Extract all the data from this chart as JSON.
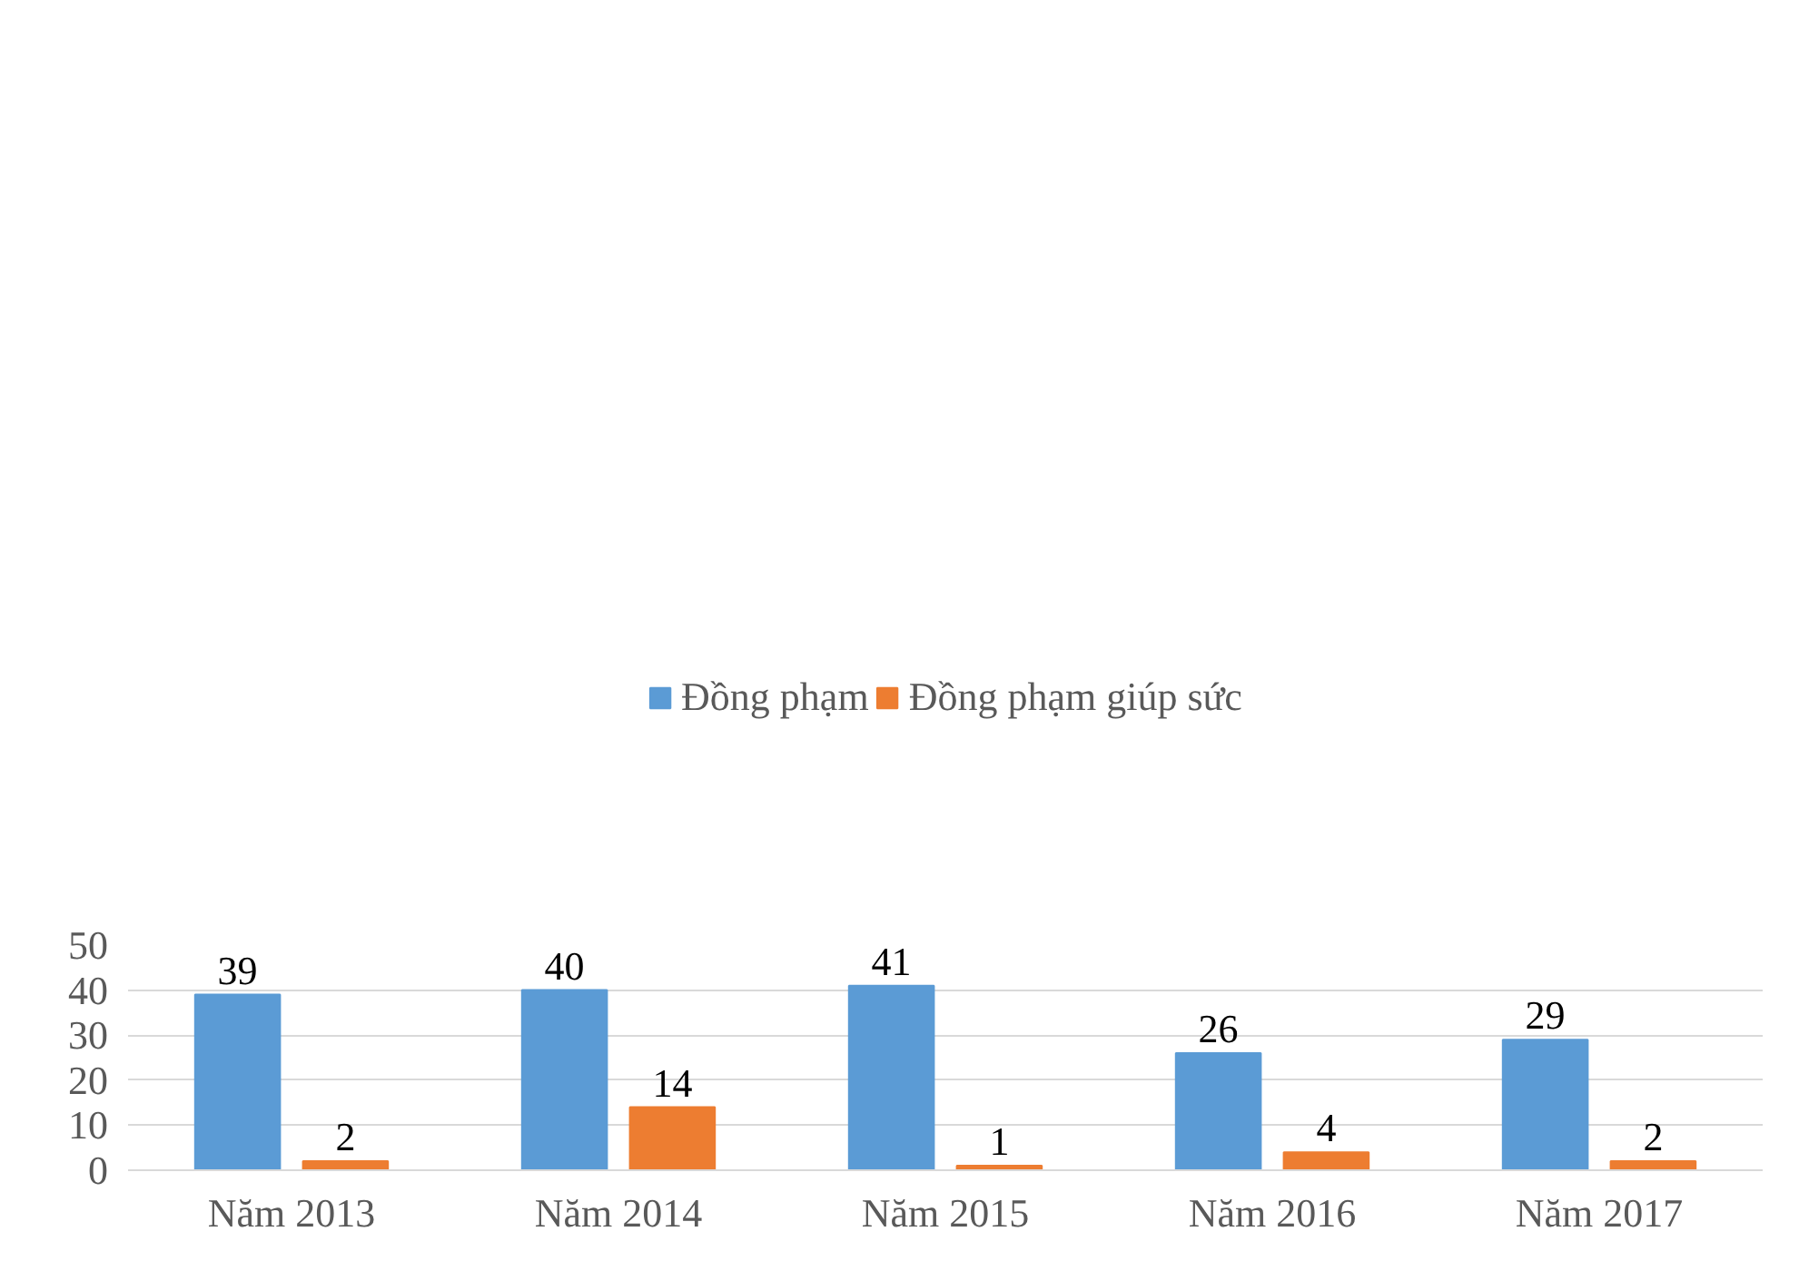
{
  "chart_data": {
    "type": "bar",
    "categories": [
      "Năm 2013",
      "Năm 2014",
      "Năm 2015",
      "Năm 2016",
      "Năm 2017"
    ],
    "series": [
      {
        "name": "Đồng phạm",
        "color": "#5b9bd5",
        "values": [
          39,
          40,
          41,
          26,
          29
        ]
      },
      {
        "name": "Đồng phạm giúp sức",
        "color": "#ed7d31",
        "values": [
          2,
          14,
          1,
          4,
          2
        ]
      }
    ],
    "ylim": [
      0,
      50
    ],
    "yticks": [
      0,
      10,
      20,
      30,
      40,
      50
    ],
    "grid": "y",
    "legend": "top",
    "data_labels": true
  }
}
